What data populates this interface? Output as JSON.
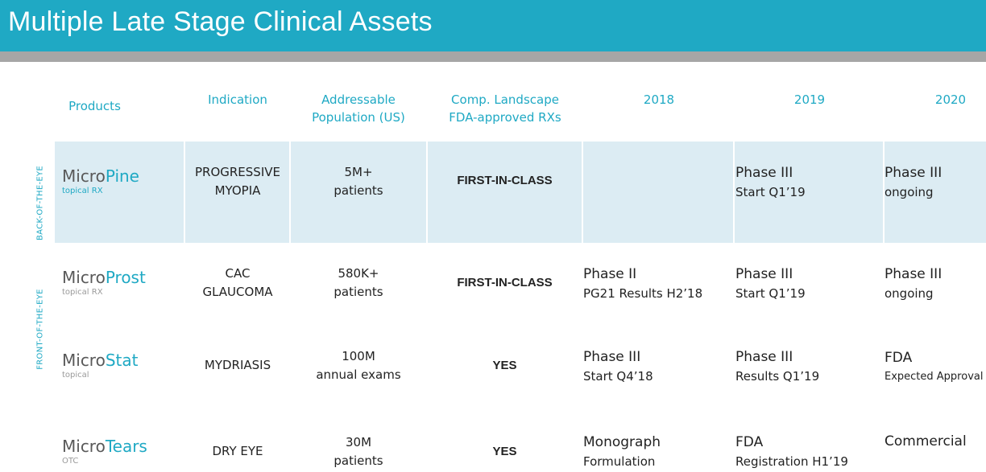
{
  "title": "Multiple Late Stage Clinical Assets",
  "columns": {
    "products": "Products",
    "indication": "Indication",
    "population_1": "Addressable",
    "population_2": "Population (US)",
    "landscape_1": "Comp. Landscape",
    "landscape_2": "FDA-approved RXs",
    "y2018": "2018",
    "y2019": "2019",
    "y2020": "2020"
  },
  "side_labels": {
    "back": "BACK-OF-THE-EYE",
    "front": "FRONT-OF-THE-EYE"
  },
  "rows": [
    {
      "name_prefix": "Micro",
      "name_suffix": "Pine",
      "sub": "topical RX",
      "indication_1": "PROGRESSIVE",
      "indication_2": "MYOPIA",
      "population_1": "5M+",
      "population_2": "patients",
      "landscape": "FIRST-IN-CLASS",
      "y2018_1": "",
      "y2018_2": "",
      "y2019_1": "Phase III",
      "y2019_2": "Start Q1’19",
      "y2020_1": "Phase III",
      "y2020_2": "ongoing"
    },
    {
      "name_prefix": "Micro",
      "name_suffix": "Prost",
      "sub": "topical RX",
      "indication_1": "CAC",
      "indication_2": "GLAUCOMA",
      "population_1": "580K+",
      "population_2": "patients",
      "landscape": "FIRST-IN-CLASS",
      "y2018_1": "Phase II",
      "y2018_2": "PG21 Results H2’18",
      "y2019_1": "Phase III",
      "y2019_2": "Start Q1’19",
      "y2020_1": "Phase III",
      "y2020_2": "ongoing"
    },
    {
      "name_prefix": "Micro",
      "name_suffix": "Stat",
      "sub": "topical",
      "indication_1": "MYDRIASIS",
      "indication_2": "",
      "population_1": "100M",
      "population_2": "annual exams",
      "landscape": "YES",
      "y2018_1": "Phase III",
      "y2018_2": "Start Q4’18",
      "y2019_1": "Phase III",
      "y2019_2": "Results Q1’19",
      "y2020_1": "FDA",
      "y2020_2": "Expected Approval"
    },
    {
      "name_prefix": "Micro",
      "name_suffix": "Tears",
      "sub": "OTC",
      "indication_1": "DRY EYE",
      "indication_2": "",
      "population_1": "30M",
      "population_2": "patients",
      "landscape": "YES",
      "y2018_1": "Monograph",
      "y2018_2": "Formulation",
      "y2019_1": "FDA",
      "y2019_2": "Registration H1’19",
      "y2020_1": "Commercial",
      "y2020_2": ""
    }
  ]
}
